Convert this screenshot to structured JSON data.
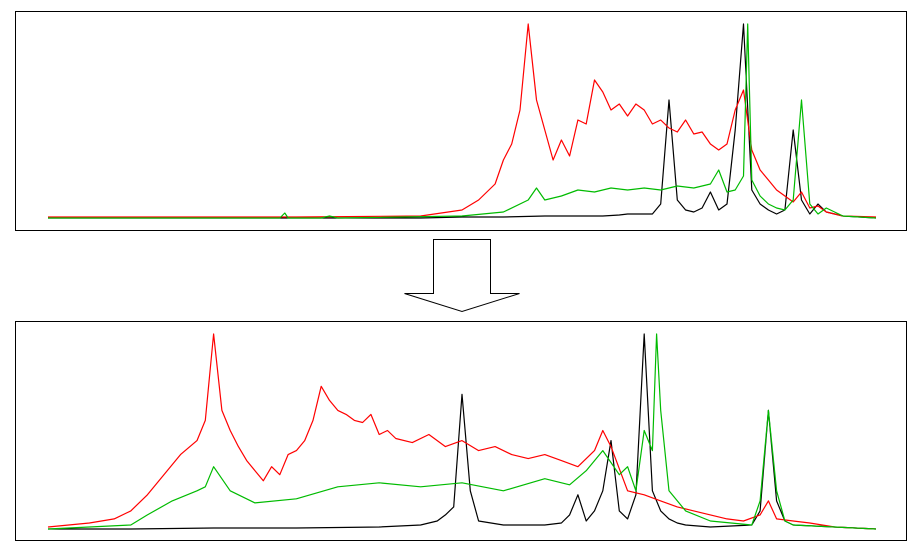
{
  "colors": {
    "frame": "#000000",
    "arrow_fill": "#ffffff",
    "arrow_stroke": "#000000"
  },
  "chart_data": [
    {
      "type": "line",
      "title": "",
      "xlabel": "",
      "ylabel": "",
      "xlim": [
        0,
        100
      ],
      "ylim": [
        0,
        100
      ],
      "grid": false,
      "legend": "none",
      "series": [
        {
          "color": "#000000",
          "x": [
            0,
            40,
            45,
            50,
            55,
            60,
            65,
            67,
            69,
            70,
            71,
            72,
            73,
            74,
            75,
            76,
            77,
            78,
            79,
            80,
            81,
            82,
            83,
            84,
            85,
            86,
            87,
            88,
            89,
            90,
            91,
            92,
            93,
            94,
            96,
            100
          ],
          "values": [
            1,
            1,
            1,
            1.5,
            1.5,
            2,
            2,
            2,
            2.5,
            3,
            3,
            3,
            3,
            8,
            60,
            10,
            5,
            4,
            6,
            14,
            5,
            8,
            45,
            98,
            15,
            8,
            5,
            3,
            5,
            45,
            10,
            3,
            8,
            4,
            2,
            1
          ]
        },
        {
          "color": "#ff0000",
          "x": [
            0,
            30,
            45,
            50,
            52,
            54,
            55,
            56,
            57,
            58,
            59,
            60,
            61,
            62,
            63,
            64,
            65,
            66,
            67,
            68,
            69,
            70,
            71,
            72,
            73,
            74,
            75,
            76,
            77,
            78,
            79,
            80,
            81,
            82,
            83,
            84,
            85,
            86,
            87,
            88,
            89,
            90,
            91,
            92,
            93,
            94,
            96,
            100
          ],
          "values": [
            1.5,
            1.5,
            2,
            5,
            10,
            18,
            30,
            38,
            55,
            98,
            60,
            45,
            30,
            40,
            32,
            50,
            48,
            70,
            64,
            55,
            58,
            52,
            58,
            55,
            48,
            50,
            46,
            44,
            50,
            43,
            44,
            38,
            35,
            38,
            55,
            65,
            35,
            25,
            20,
            15,
            12,
            9,
            14,
            6,
            7,
            4,
            2,
            1.5
          ]
        },
        {
          "color": "#00bb00",
          "x": [
            0,
            28,
            28.6,
            29,
            33,
            34,
            35,
            50,
            55,
            58,
            59,
            60,
            62,
            64,
            66,
            68,
            70,
            72,
            74,
            76,
            78,
            80,
            81,
            82,
            83,
            84,
            84.5,
            85,
            86,
            87,
            88,
            89,
            90,
            91,
            92,
            93,
            94,
            96,
            100
          ],
          "values": [
            1,
            1,
            3.5,
            1,
            1,
            2,
            1,
            2,
            4,
            10,
            16,
            10,
            12,
            15,
            14,
            16,
            15,
            16,
            15,
            17,
            16,
            18,
            25,
            14,
            15,
            22,
            98,
            20,
            12,
            8,
            6,
            5,
            10,
            60,
            8,
            3,
            6,
            2,
            1
          ]
        }
      ]
    },
    {
      "type": "line",
      "title": "",
      "xlabel": "",
      "ylabel": "",
      "xlim": [
        0,
        100
      ],
      "ylim": [
        0,
        100
      ],
      "grid": false,
      "legend": "none",
      "series": [
        {
          "color": "#000000",
          "x": [
            0,
            10,
            20,
            30,
            40,
            45,
            47,
            48,
            49,
            50,
            51,
            52,
            55,
            60,
            62,
            63,
            64,
            65,
            66,
            67,
            68,
            69,
            70,
            71,
            72,
            73,
            74,
            75,
            76,
            77,
            80,
            85,
            86,
            87,
            88,
            89,
            90,
            95,
            100
          ],
          "values": [
            1,
            1,
            1.5,
            1.5,
            2,
            3,
            5,
            8,
            12,
            68,
            20,
            5,
            3,
            3,
            4,
            8,
            18,
            5,
            10,
            20,
            45,
            10,
            6,
            18,
            98,
            20,
            10,
            6,
            4,
            3,
            2,
            3,
            10,
            60,
            15,
            5,
            3,
            2,
            1
          ]
        },
        {
          "color": "#ff0000",
          "x": [
            0,
            5,
            8,
            10,
            12,
            14,
            16,
            18,
            19,
            20,
            21,
            22,
            23,
            24,
            25,
            26,
            27,
            28,
            29,
            30,
            31,
            32,
            33,
            34,
            35,
            36,
            37,
            38,
            39,
            40,
            41,
            42,
            44,
            46,
            48,
            50,
            52,
            54,
            56,
            58,
            60,
            62,
            64,
            66,
            67,
            68,
            70,
            72,
            74,
            76,
            78,
            80,
            82,
            84,
            86,
            87,
            88,
            90,
            92,
            95,
            100
          ],
          "values": [
            2,
            4,
            6,
            10,
            18,
            28,
            38,
            45,
            55,
            98,
            60,
            50,
            42,
            35,
            30,
            25,
            32,
            28,
            38,
            40,
            45,
            55,
            72,
            65,
            60,
            58,
            55,
            54,
            58,
            48,
            50,
            46,
            44,
            48,
            42,
            45,
            40,
            42,
            38,
            36,
            38,
            35,
            32,
            40,
            50,
            42,
            20,
            18,
            15,
            12,
            10,
            8,
            6,
            5,
            8,
            15,
            6,
            5,
            4,
            2,
            1
          ]
        },
        {
          "color": "#00bb00",
          "x": [
            0,
            10,
            12,
            15,
            18,
            19,
            20,
            22,
            25,
            30,
            35,
            40,
            45,
            50,
            55,
            60,
            63,
            65,
            67,
            69,
            70,
            71,
            72,
            73,
            73.5,
            74,
            75,
            77,
            80,
            85,
            86,
            87,
            88,
            89,
            90,
            95,
            100
          ],
          "values": [
            1,
            3,
            8,
            15,
            20,
            22,
            32,
            20,
            14,
            16,
            22,
            24,
            22,
            24,
            20,
            26,
            23,
            30,
            40,
            28,
            32,
            20,
            50,
            40,
            98,
            60,
            20,
            10,
            5,
            3,
            15,
            60,
            20,
            5,
            3,
            2,
            1
          ]
        }
      ]
    }
  ]
}
